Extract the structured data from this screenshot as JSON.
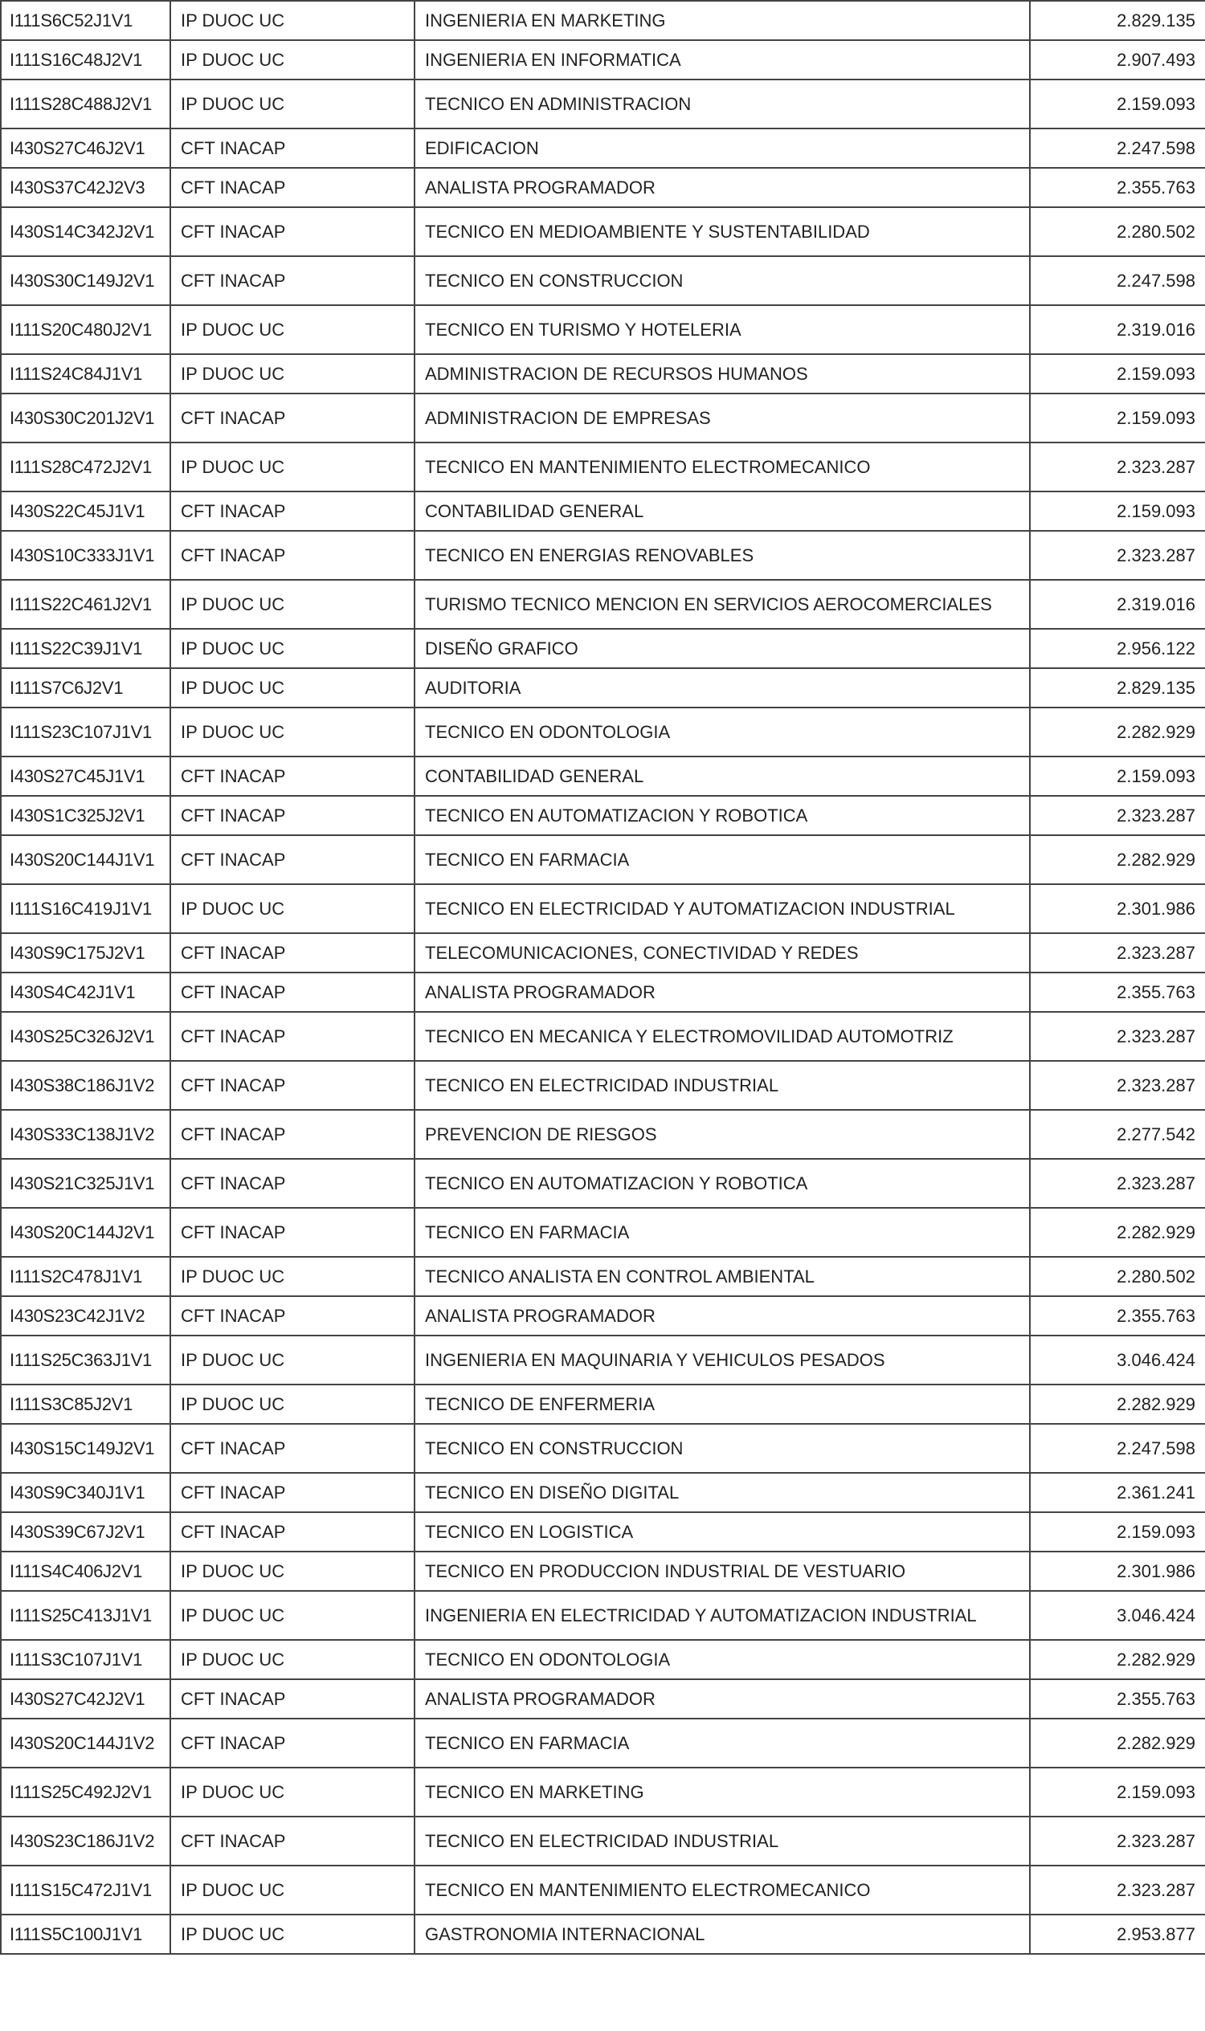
{
  "rows": [
    {
      "code": "I111S6C52J1V1",
      "inst": "IP DUOC UC",
      "career": "INGENIERIA EN MARKETING",
      "amount": "2.829.135"
    },
    {
      "code": "I111S16C48J2V1",
      "inst": "IP DUOC UC",
      "career": "INGENIERIA EN INFORMATICA",
      "amount": "2.907.493"
    },
    {
      "code": "I111S28C488J2V1",
      "inst": "IP DUOC UC",
      "career": "TECNICO EN ADMINISTRACION",
      "amount": "2.159.093"
    },
    {
      "code": "I430S27C46J2V1",
      "inst": "CFT INACAP",
      "career": "EDIFICACION",
      "amount": "2.247.598"
    },
    {
      "code": "I430S37C42J2V3",
      "inst": "CFT INACAP",
      "career": "ANALISTA PROGRAMADOR",
      "amount": "2.355.763"
    },
    {
      "code": "I430S14C342J2V1",
      "inst": "CFT INACAP",
      "career": "TECNICO EN MEDIOAMBIENTE Y SUSTENTABILIDAD",
      "amount": "2.280.502"
    },
    {
      "code": "I430S30C149J2V1",
      "inst": "CFT INACAP",
      "career": "TECNICO EN CONSTRUCCION",
      "amount": "2.247.598"
    },
    {
      "code": "I111S20C480J2V1",
      "inst": "IP DUOC UC",
      "career": "TECNICO EN TURISMO Y HOTELERIA",
      "amount": "2.319.016"
    },
    {
      "code": "I111S24C84J1V1",
      "inst": "IP DUOC UC",
      "career": "ADMINISTRACION DE RECURSOS HUMANOS",
      "amount": "2.159.093"
    },
    {
      "code": "I430S30C201J2V1",
      "inst": "CFT INACAP",
      "career": "ADMINISTRACION DE EMPRESAS",
      "amount": "2.159.093"
    },
    {
      "code": "I111S28C472J2V1",
      "inst": "IP DUOC UC",
      "career": "TECNICO EN MANTENIMIENTO ELECTROMECANICO",
      "amount": "2.323.287"
    },
    {
      "code": "I430S22C45J1V1",
      "inst": "CFT INACAP",
      "career": "CONTABILIDAD GENERAL",
      "amount": "2.159.093"
    },
    {
      "code": "I430S10C333J1V1",
      "inst": "CFT INACAP",
      "career": "TECNICO EN ENERGIAS RENOVABLES",
      "amount": "2.323.287"
    },
    {
      "code": "I111S22C461J2V1",
      "inst": "IP DUOC UC",
      "career": "TURISMO TECNICO MENCION EN SERVICIOS AEROCOMERCIALES",
      "amount": "2.319.016"
    },
    {
      "code": "I111S22C39J1V1",
      "inst": "IP DUOC UC",
      "career": "DISEÑO GRAFICO",
      "amount": "2.956.122"
    },
    {
      "code": "I111S7C6J2V1",
      "inst": "IP DUOC UC",
      "career": "AUDITORIA",
      "amount": "2.829.135"
    },
    {
      "code": "I111S23C107J1V1",
      "inst": "IP DUOC UC",
      "career": "TECNICO EN ODONTOLOGIA",
      "amount": "2.282.929"
    },
    {
      "code": "I430S27C45J1V1",
      "inst": "CFT INACAP",
      "career": "CONTABILIDAD GENERAL",
      "amount": "2.159.093"
    },
    {
      "code": "I430S1C325J2V1",
      "inst": "CFT INACAP",
      "career": "TECNICO EN AUTOMATIZACION Y ROBOTICA",
      "amount": "2.323.287"
    },
    {
      "code": "I430S20C144J1V1",
      "inst": "CFT INACAP",
      "career": "TECNICO EN FARMACIA",
      "amount": "2.282.929"
    },
    {
      "code": "I111S16C419J1V1",
      "inst": "IP DUOC UC",
      "career": "TECNICO EN ELECTRICIDAD Y AUTOMATIZACION INDUSTRIAL",
      "amount": "2.301.986"
    },
    {
      "code": "I430S9C175J2V1",
      "inst": "CFT INACAP",
      "career": "TELECOMUNICACIONES, CONECTIVIDAD Y REDES",
      "amount": "2.323.287"
    },
    {
      "code": "I430S4C42J1V1",
      "inst": "CFT INACAP",
      "career": "ANALISTA PROGRAMADOR",
      "amount": "2.355.763"
    },
    {
      "code": "I430S25C326J2V1",
      "inst": "CFT INACAP",
      "career": "TECNICO EN MECANICA Y ELECTROMOVILIDAD AUTOMOTRIZ",
      "amount": "2.323.287"
    },
    {
      "code": "I430S38C186J1V2",
      "inst": "CFT INACAP",
      "career": "TECNICO EN ELECTRICIDAD INDUSTRIAL",
      "amount": "2.323.287"
    },
    {
      "code": "I430S33C138J1V2",
      "inst": "CFT INACAP",
      "career": "PREVENCION DE RIESGOS",
      "amount": "2.277.542"
    },
    {
      "code": "I430S21C325J1V1",
      "inst": "CFT INACAP",
      "career": "TECNICO EN AUTOMATIZACION Y ROBOTICA",
      "amount": "2.323.287"
    },
    {
      "code": "I430S20C144J2V1",
      "inst": "CFT INACAP",
      "career": "TECNICO EN FARMACIA",
      "amount": "2.282.929"
    },
    {
      "code": "I111S2C478J1V1",
      "inst": "IP DUOC UC",
      "career": "TECNICO ANALISTA EN CONTROL AMBIENTAL",
      "amount": "2.280.502"
    },
    {
      "code": "I430S23C42J1V2",
      "inst": "CFT INACAP",
      "career": "ANALISTA PROGRAMADOR",
      "amount": "2.355.763"
    },
    {
      "code": "I111S25C363J1V1",
      "inst": "IP DUOC UC",
      "career": "INGENIERIA EN MAQUINARIA Y VEHICULOS PESADOS",
      "amount": "3.046.424"
    },
    {
      "code": "I111S3C85J2V1",
      "inst": "IP DUOC UC",
      "career": "TECNICO DE ENFERMERIA",
      "amount": "2.282.929"
    },
    {
      "code": "I430S15C149J2V1",
      "inst": "CFT INACAP",
      "career": "TECNICO EN CONSTRUCCION",
      "amount": "2.247.598"
    },
    {
      "code": "I430S9C340J1V1",
      "inst": "CFT INACAP",
      "career": "TECNICO EN DISEÑO DIGITAL",
      "amount": "2.361.241"
    },
    {
      "code": "I430S39C67J2V1",
      "inst": "CFT INACAP",
      "career": "TECNICO EN LOGISTICA",
      "amount": "2.159.093"
    },
    {
      "code": "I111S4C406J2V1",
      "inst": "IP DUOC UC",
      "career": "TECNICO EN PRODUCCION INDUSTRIAL DE VESTUARIO",
      "amount": "2.301.986"
    },
    {
      "code": "I111S25C413J1V1",
      "inst": "IP DUOC UC",
      "career": "INGENIERIA EN ELECTRICIDAD Y AUTOMATIZACION INDUSTRIAL",
      "amount": "3.046.424"
    },
    {
      "code": "I111S3C107J1V1",
      "inst": "IP DUOC UC",
      "career": "TECNICO EN ODONTOLOGIA",
      "amount": "2.282.929"
    },
    {
      "code": "I430S27C42J2V1",
      "inst": "CFT INACAP",
      "career": "ANALISTA PROGRAMADOR",
      "amount": "2.355.763"
    },
    {
      "code": "I430S20C144J1V2",
      "inst": "CFT INACAP",
      "career": "TECNICO EN FARMACIA",
      "amount": "2.282.929"
    },
    {
      "code": "I111S25C492J2V1",
      "inst": "IP DUOC UC",
      "career": "TECNICO EN MARKETING",
      "amount": "2.159.093"
    },
    {
      "code": "I430S23C186J1V2",
      "inst": "CFT INACAP",
      "career": "TECNICO EN ELECTRICIDAD INDUSTRIAL",
      "amount": "2.323.287"
    },
    {
      "code": "I111S15C472J1V1",
      "inst": "IP DUOC UC",
      "career": "TECNICO EN MANTENIMIENTO ELECTROMECANICO",
      "amount": "2.323.287"
    },
    {
      "code": "I111S5C100J1V1",
      "inst": "IP DUOC UC",
      "career": "GASTRONOMIA INTERNACIONAL",
      "amount": "2.953.877"
    }
  ]
}
